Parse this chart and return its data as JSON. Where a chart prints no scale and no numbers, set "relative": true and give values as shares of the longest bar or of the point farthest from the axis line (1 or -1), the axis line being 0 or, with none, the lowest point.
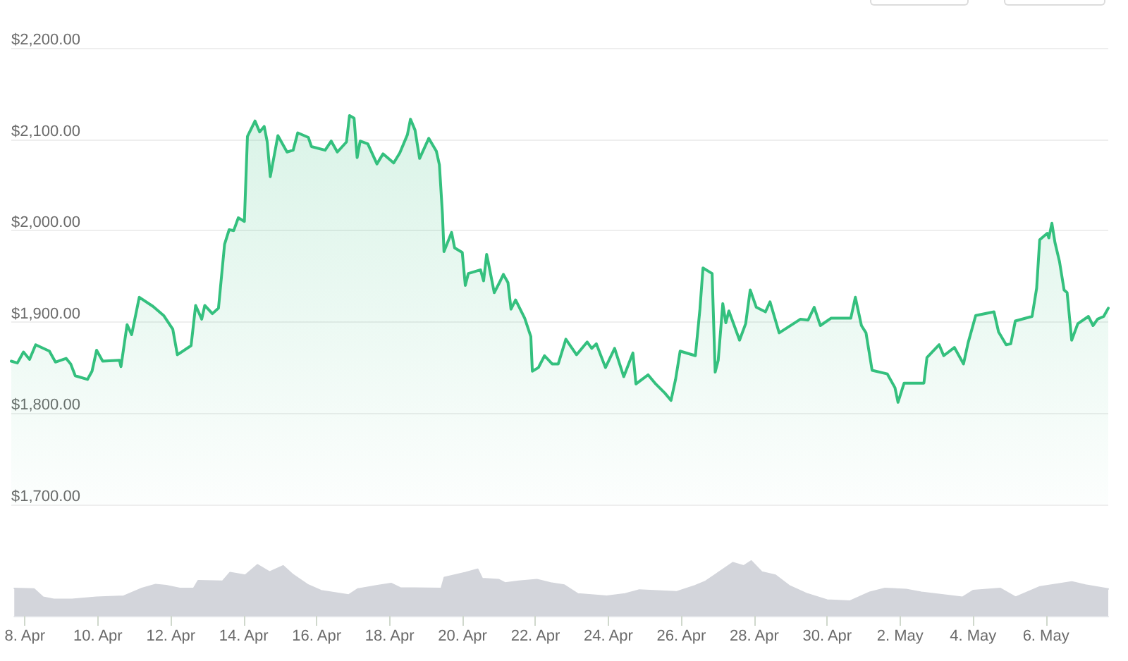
{
  "chart_data": [
    {
      "type": "area",
      "color": "#34c07e",
      "grid": "y",
      "tick_labels": "y",
      "xlim": [
        "--04-07T17:00",
        "--05-07T17:00"
      ],
      "xticks": [
        {
          "value": "--04-08",
          "label": "8. Apr"
        },
        {
          "value": "--04-10",
          "label": "10. Apr"
        },
        {
          "value": "--04-12",
          "label": "12. Apr"
        },
        {
          "value": "--04-14",
          "label": "14. Apr"
        },
        {
          "value": "--04-16",
          "label": "16. Apr"
        },
        {
          "value": "--04-18",
          "label": "18. Apr"
        },
        {
          "value": "--04-20",
          "label": "20. Apr"
        },
        {
          "value": "--04-22",
          "label": "22. Apr"
        },
        {
          "value": "--04-24",
          "label": "24. Apr"
        },
        {
          "value": "--04-26",
          "label": "26. Apr"
        },
        {
          "value": "--04-28",
          "label": "28. Apr"
        },
        {
          "value": "--04-30",
          "label": "30. Apr"
        },
        {
          "value": "--05-02",
          "label": "2. May"
        },
        {
          "value": "--05-04",
          "label": "4. May"
        },
        {
          "value": "--05-06",
          "label": "6. May"
        }
      ],
      "ylim": [
        1700,
        2200
      ],
      "yticks": [
        {
          "value": 1700,
          "label": "$1,700.00"
        },
        {
          "value": 1800,
          "label": "$1,800.00"
        },
        {
          "value": 1900,
          "label": "$1,900.00"
        },
        {
          "value": 2000,
          "label": "$2,000.00"
        },
        {
          "value": 2100,
          "label": "$2,100.00"
        },
        {
          "value": 2200,
          "label": "$2,200.00"
        }
      ],
      "x": [
        "--04-07T17:00",
        "--04-07T21:00",
        "--04-08T01:00",
        "--04-08T05:00",
        "--04-08T09:00",
        "--04-08T18:00",
        "--04-08T22:00",
        "--04-09T05:00",
        "--04-09T08:00",
        "--04-09T11:00",
        "--04-09T19:00",
        "--04-09T22:00",
        "--04-10T01:00",
        "--04-10T05:00",
        "--04-10T16:00",
        "--04-10T17:00",
        "--04-10T21:00",
        "--04-11T00:00",
        "--04-11T05:00",
        "--04-11T14:00",
        "--04-11T21:00",
        "--04-12T03:00",
        "--04-12T06:00",
        "--04-12T15:00",
        "--04-12T18:00",
        "--04-12T22:00",
        "--04-13T00:00",
        "--04-13T05:00",
        "--04-13T09:00",
        "--04-13T13:00",
        "--04-13T16:00",
        "--04-13T19:00",
        "--04-13T22:00",
        "--04-14T02:00",
        "--04-14T04:00",
        "--04-14T09:00",
        "--04-14T12:00",
        "--04-14T15:00",
        "--04-14T17:00",
        "--04-14T19:00",
        "--04-14T21:00",
        "--04-15T00:00",
        "--04-15T06:00",
        "--04-15T10:00",
        "--04-15T13:00",
        "--04-15T20:00",
        "--04-15T22:00",
        "--04-16T07:00",
        "--04-16T11:00",
        "--04-16T15:00",
        "--04-16T21:00",
        "--04-16T23:00",
        "--04-17T02:00",
        "--04-17T04:00",
        "--04-17T06:00",
        "--04-17T11:00",
        "--04-17T17:00",
        "--04-17T21:00",
        "--04-18T04:00",
        "--04-18T08:00",
        "--04-18T13:00",
        "--04-18T15:00",
        "--04-18T18:00",
        "--04-18T21:00",
        "--04-19T03:00",
        "--04-19T08:00",
        "--04-19T10:00",
        "--04-19T12:00",
        "--04-19T13:00",
        "--04-19T18:00",
        "--04-19T20:00",
        "--04-20T01:00",
        "--04-20T03:00",
        "--04-20T05:00",
        "--04-20T13:00",
        "--04-20T15:00",
        "--04-20T17:00",
        "--04-20T18:00",
        "--04-20T22:00",
        "--04-21T02:00",
        "--04-21T04:00",
        "--04-21T07:00",
        "--04-21T09:00",
        "--04-21T12:00",
        "--04-21T18:00",
        "--04-21T22:00",
        "--04-21T23:00",
        "--04-22T03:00",
        "--04-22T07:00",
        "--04-22T12:00",
        "--04-22T16:00",
        "--04-22T21:00",
        "--04-23T04:00",
        "--04-23T11:00",
        "--04-23T14:00",
        "--04-23T17:00",
        "--04-23T23:00",
        "--04-24T05:00",
        "--04-24T11:00",
        "--04-24T17:00",
        "--04-24T19:00",
        "--04-25T03:00",
        "--04-25T08:00",
        "--04-25T14:00",
        "--04-25T18:00",
        "--04-25T21:00",
        "--04-26T00:00",
        "--04-26T10:00",
        "--04-26T13:00",
        "--04-26T15:00",
        "--04-26T21:00",
        "--04-26T23:00",
        "--04-27T01:00",
        "--04-27T04:00",
        "--04-27T06:00",
        "--04-27T08:00",
        "--04-27T15:00",
        "--04-27T19:00",
        "--04-27T22:00",
        "--04-28T02:00",
        "--04-28T08:00",
        "--04-28T11:00",
        "--04-28T17:00",
        "--04-29T07:00",
        "--04-29T12:00",
        "--04-29T16:00",
        "--04-29T20:00",
        "--04-30T03:00",
        "--04-30T16:00",
        "--04-30T19:00",
        "--04-30T23:00",
        "--05-01T02:00",
        "--05-01T06:00",
        "--05-01T16:00",
        "--05-01T21:00",
        "--05-01T23:00",
        "--05-02T03:00",
        "--05-02T16:00",
        "--05-02T18:00",
        "--05-03T02:00",
        "--05-03T05:00",
        "--05-03T12:00",
        "--05-03T18:00",
        "--05-03T21:00",
        "--05-04T02:00",
        "--05-04T14:00",
        "--05-04T17:00",
        "--05-04T22:00",
        "--05-05T01:00",
        "--05-05T04:00",
        "--05-05T15:00",
        "--05-05T18:00",
        "--05-05T20:00",
        "--05-06T01:00",
        "--05-06T02:00",
        "--05-06T04:00",
        "--05-06T06:00",
        "--05-06T09:00",
        "--05-06T12:00",
        "--05-06T14:00",
        "--05-06T17:00",
        "--05-06T21:00",
        "--05-07T04:00",
        "--05-07T07:00",
        "--05-07T10:00",
        "--05-07T14:00",
        "--05-07T17:00"
      ],
      "values": [
        1857,
        1855,
        1867,
        1859,
        1875,
        1868,
        1856,
        1860,
        1854,
        1841,
        1837,
        1846,
        1869,
        1857,
        1858,
        1851,
        1897,
        1886,
        1927,
        1917,
        1907,
        1892,
        1864,
        1874,
        1918,
        1903,
        1918,
        1909,
        1915,
        1985,
        2001,
        2000,
        2014,
        2010,
        2103,
        2120,
        2108,
        2114,
        2097,
        2059,
        2077,
        2104,
        2086,
        2088,
        2107,
        2102,
        2092,
        2088,
        2098,
        2086,
        2097,
        2126,
        2123,
        2080,
        2098,
        2095,
        2073,
        2084,
        2074,
        2085,
        2105,
        2122,
        2110,
        2079,
        2101,
        2087,
        2072,
        2018,
        1977,
        1998,
        1981,
        1976,
        1940,
        1953,
        1957,
        1945,
        1974,
        1966,
        1932,
        1945,
        1952,
        1943,
        1914,
        1924,
        1904,
        1884,
        1846,
        1850,
        1863,
        1854,
        1854,
        1881,
        1864,
        1878,
        1871,
        1876,
        1850,
        1871,
        1840,
        1866,
        1832,
        1842,
        1832,
        1822,
        1814,
        1837,
        1868,
        1863,
        1914,
        1959,
        1953,
        1845,
        1858,
        1920,
        1899,
        1912,
        1880,
        1898,
        1935,
        1916,
        1911,
        1922,
        1888,
        1903,
        1902,
        1916,
        1896,
        1904,
        1904,
        1927,
        1896,
        1888,
        1847,
        1843,
        1828,
        1812,
        1833,
        1833,
        1861,
        1875,
        1863,
        1872,
        1854,
        1877,
        1907,
        1911,
        1889,
        1875,
        1876,
        1901,
        1906,
        1937,
        1990,
        1997,
        1992,
        2008,
        1987,
        1966,
        1935,
        1932,
        1880,
        1898,
        1906,
        1896,
        1903,
        1906,
        1915
      ]
    },
    {
      "type": "area",
      "relative": true,
      "color": "#d3d5db",
      "tick_labels": "x",
      "xlim": [
        "--04-07T17:00",
        "--05-07T17:00"
      ],
      "xticks": [
        {
          "value": "--04-08",
          "label": "8. Apr"
        },
        {
          "value": "--04-10",
          "label": "10. Apr"
        },
        {
          "value": "--04-12",
          "label": "12. Apr"
        },
        {
          "value": "--04-14",
          "label": "14. Apr"
        },
        {
          "value": "--04-16",
          "label": "16. Apr"
        },
        {
          "value": "--04-18",
          "label": "18. Apr"
        },
        {
          "value": "--04-20",
          "label": "20. Apr"
        },
        {
          "value": "--04-22",
          "label": "22. Apr"
        },
        {
          "value": "--04-24",
          "label": "24. Apr"
        },
        {
          "value": "--04-26",
          "label": "26. Apr"
        },
        {
          "value": "--04-28",
          "label": "28. Apr"
        },
        {
          "value": "--04-30",
          "label": "30. Apr"
        },
        {
          "value": "--05-02",
          "label": "2. May"
        },
        {
          "value": "--05-04",
          "label": "4. May"
        },
        {
          "value": "--05-06",
          "label": "6. May"
        }
      ],
      "x": [
        "--04-07T17:00",
        "--04-08T06:00",
        "--04-08T12:00",
        "--04-08T19:00",
        "--04-09T07:00",
        "--04-09T23:00",
        "--04-10T17:00",
        "--04-11T05:00",
        "--04-11T14:00",
        "--04-11T21:00",
        "--04-12T06:00",
        "--04-12T15:00",
        "--04-12T18:00",
        "--04-13T10:00",
        "--04-13T15:00",
        "--04-14T01:00",
        "--04-14T09:00",
        "--04-14T17:00",
        "--04-15T02:00",
        "--04-15T08:00",
        "--04-15T18:00",
        "--04-16T03:00",
        "--04-16T21:00",
        "--04-17T03:00",
        "--04-17T16:00",
        "--04-18T01:00",
        "--04-18T07:00",
        "--04-19T10:00",
        "--04-19T12:00",
        "--04-20T02:00",
        "--04-20T10:00",
        "--04-20T13:00",
        "--04-21T00:00",
        "--04-21T04:00",
        "--04-21T13:00",
        "--04-22T01:00",
        "--04-22T10:00",
        "--04-22T19:00",
        "--04-23T04:00",
        "--04-23T23:00",
        "--04-24T11:00",
        "--04-24T20:00",
        "--04-25T21:00",
        "--04-26T09:00",
        "--04-26T16:00",
        "--04-27T01:00",
        "--04-27T10:00",
        "--04-27T17:00",
        "--04-27T22:00",
        "--04-28T05:00",
        "--04-28T14:00",
        "--04-28T23:00",
        "--04-29T11:00",
        "--04-30T00:00",
        "--04-30T15:00",
        "--05-01T04:00",
        "--05-01T14:00",
        "--05-02T04:00",
        "--05-02T14:00",
        "--05-03T17:00",
        "--05-04T00:00",
        "--05-04T18:00",
        "--05-05T04:00",
        "--05-05T20:00",
        "--05-06T17:00",
        "--05-07T02:00",
        "--05-07T17:00"
      ],
      "values": [
        0.5,
        0.49,
        0.34,
        0.3,
        0.3,
        0.34,
        0.36,
        0.5,
        0.57,
        0.55,
        0.5,
        0.5,
        0.64,
        0.63,
        0.79,
        0.74,
        0.93,
        0.8,
        0.91,
        0.76,
        0.57,
        0.46,
        0.38,
        0.49,
        0.55,
        0.59,
        0.51,
        0.5,
        0.7,
        0.79,
        0.85,
        0.68,
        0.66,
        0.6,
        0.63,
        0.66,
        0.6,
        0.56,
        0.4,
        0.36,
        0.4,
        0.47,
        0.44,
        0.55,
        0.63,
        0.8,
        0.97,
        0.91,
        1,
        0.8,
        0.74,
        0.55,
        0.4,
        0.29,
        0.27,
        0.43,
        0.5,
        0.48,
        0.43,
        0.34,
        0.46,
        0.5,
        0.34,
        0.53,
        0.62,
        0.56,
        0.49
      ]
    }
  ]
}
